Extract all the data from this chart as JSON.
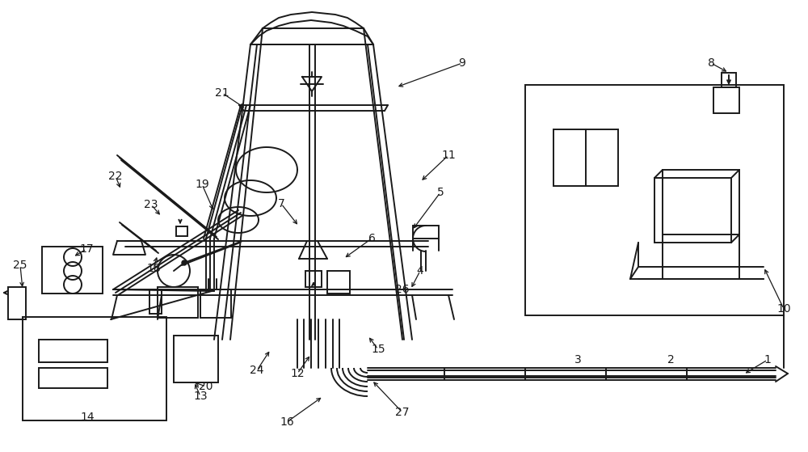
{
  "bg_color": "#ffffff",
  "line_color": "#1a1a1a",
  "lw": 1.4,
  "fig_w": 10.0,
  "fig_h": 5.59,
  "dpi": 100
}
